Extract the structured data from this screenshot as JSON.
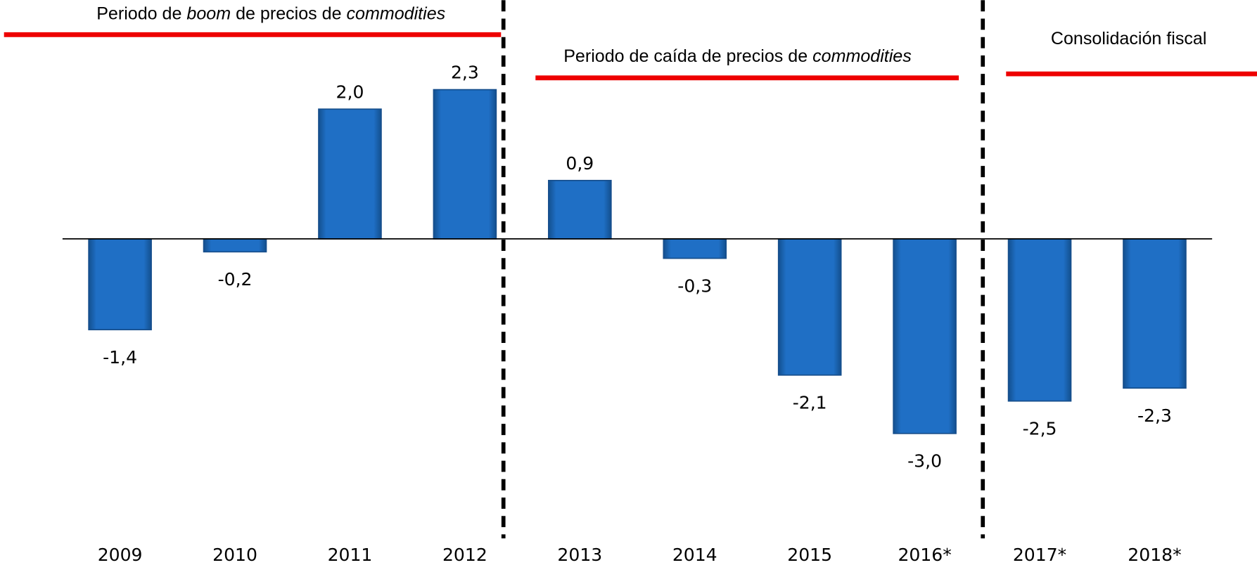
{
  "chart_data": {
    "type": "bar",
    "categories": [
      "2009",
      "2010",
      "2011",
      "2012",
      "2013",
      "2014",
      "2015",
      "2016*",
      "2017*",
      "2018*"
    ],
    "values": [
      -1.4,
      -0.2,
      2.0,
      2.3,
      0.9,
      -0.3,
      -2.1,
      -3.0,
      -2.5,
      -2.3
    ],
    "value_labels": [
      "-1,4",
      "-0,2",
      "2,0",
      "2,3",
      "0,9",
      "-0,3",
      "-2,1",
      "-3,0",
      "-2,5",
      "-2,3"
    ],
    "color": "#1f6fc5",
    "ylim": [
      -4,
      3.5
    ],
    "annotations": [
      {
        "parts": [
          "Periodo de ",
          "boom",
          " de precios de ",
          "commodities"
        ]
      },
      {
        "parts": [
          "Periodo de caída de precios de ",
          "commodities"
        ]
      },
      {
        "parts": [
          "Consolidación fiscal"
        ]
      }
    ]
  }
}
